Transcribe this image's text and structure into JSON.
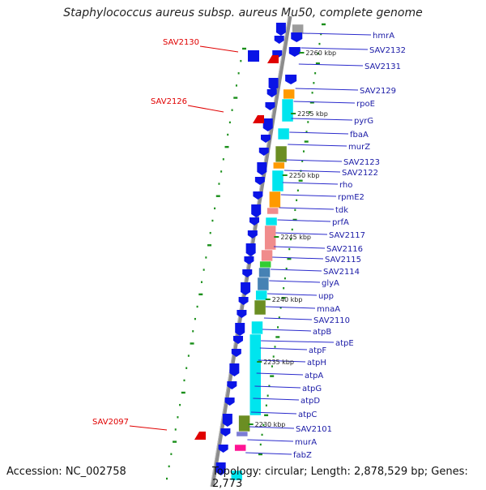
{
  "title": "Staphylococcus aureus subsp. aureus Mu50, complete genome",
  "accession_text": "Accession: NC_002758",
  "summary_text": "Topology: circular; Length: 2,878,529 bp; Genes: 2,773",
  "colors": {
    "backbone": "#8c8c8c",
    "label_line": "#2a2acc",
    "blue_gene": "#0a14e6",
    "red_rna": "#e00000",
    "green_tick": "#1a8f1a",
    "cog": [
      "#00e5ee",
      "#ff9a00",
      "#f08c8c",
      "#6b8e23",
      "#4682b4",
      "#9c9c9c",
      "#ff1493",
      "#7b7bd6",
      "#32cd32"
    ]
  },
  "scale_labels": [
    "2260 kbp",
    "2255 kbp",
    "2250 kbp",
    "2245 kbp",
    "2240 kbp",
    "2235 kbp",
    "2230 kbp"
  ],
  "gene_labels": [
    "hmrA",
    "SAV2132",
    "SAV2131",
    "SAV2129",
    "rpoE",
    "pyrG",
    "fbaA",
    "murZ",
    "SAV2123",
    "SAV2122",
    "rho",
    "rpmE2",
    "tdk",
    "prfA",
    "SAV2117",
    "SAV2116",
    "SAV2115",
    "SAV2114",
    "glyA",
    "upp",
    "mnaA",
    "SAV2110",
    "atpB",
    "atpE",
    "atpF",
    "atpH",
    "atpA",
    "atpG",
    "atpD",
    "atpC",
    "SAV2101",
    "murA",
    "fabZ"
  ],
  "rna_labels": [
    "SAV2130",
    "SAV2126",
    "SAV2097"
  ]
}
